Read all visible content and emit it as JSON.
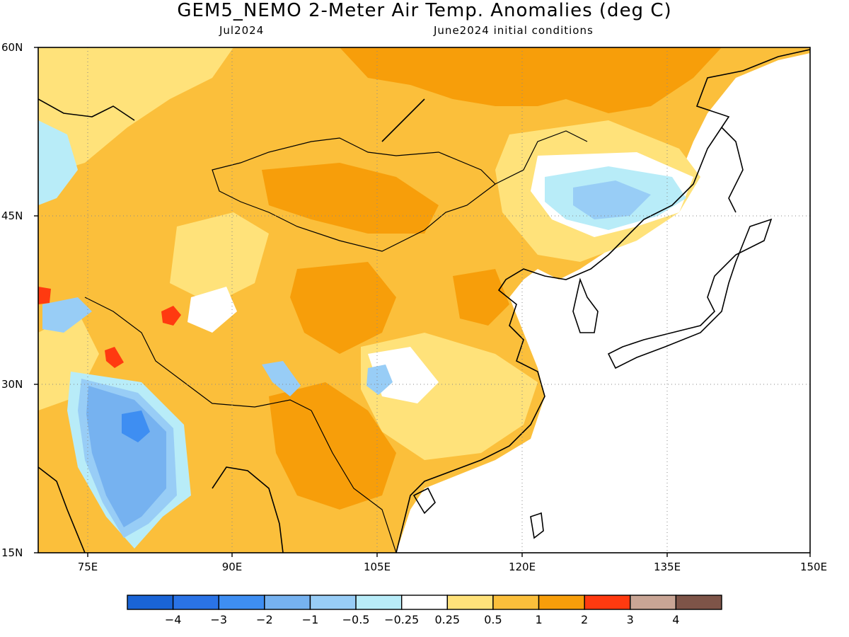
{
  "title": "GEM5_NEMO 2-Meter Air Temp. Anomalies (deg C)",
  "month": "Jul2024",
  "initial_conditions": "June2024 initial conditions",
  "lat_labels": [
    "60N",
    "45N",
    "30N",
    "15N"
  ],
  "lon_labels": [
    "75E",
    "90E",
    "105E",
    "120E",
    "135E",
    "150E"
  ],
  "colorbar": {
    "colors": [
      "#1a64d6",
      "#2a73e6",
      "#3e8ef2",
      "#76b2f0",
      "#98cdf6",
      "#b8ecf8",
      "#ffffff",
      "#ffe27a",
      "#fbbf3b",
      "#f79e0a",
      "#ff3a10",
      "#c9a595",
      "#7e5448"
    ],
    "labels": [
      "-4",
      "-3",
      "-2",
      "-1",
      "-0.5",
      "-0.25",
      "0.25",
      "0.5",
      "1",
      "2",
      "3",
      "4"
    ]
  },
  "map": {
    "lon_range": [
      70,
      150
    ],
    "lat_range": [
      15,
      60
    ],
    "units": "deg C"
  }
}
